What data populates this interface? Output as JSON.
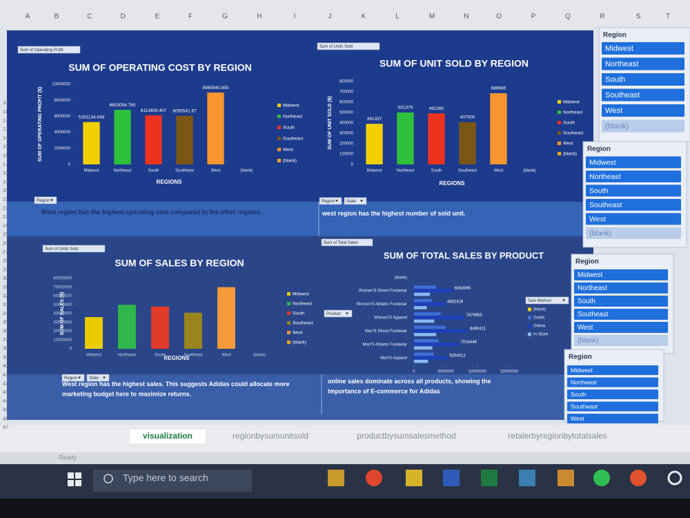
{
  "columns": [
    "A",
    "B",
    "C",
    "D",
    "E",
    "F",
    "G",
    "H",
    "I",
    "J",
    "K",
    "L",
    "M",
    "N",
    "O",
    "P",
    "Q",
    "R",
    "S",
    "T"
  ],
  "rows": [
    10,
    11,
    12,
    13,
    14,
    15,
    16,
    17,
    18,
    19,
    20,
    21,
    22,
    23,
    24,
    25,
    26,
    27,
    28,
    29,
    30,
    31,
    32,
    33,
    34,
    35,
    36,
    37,
    38,
    39,
    40,
    41,
    42,
    43,
    44,
    45,
    46,
    47
  ],
  "chart_data": [
    {
      "type": "bar",
      "title": "SUM OF OPERATING COST BY REGION",
      "field_button": "Sum of Operating Profit",
      "y_label": "SUM OF OPERATING PROFIT ($)",
      "x_label": "REGIONS",
      "categories": [
        "Midwest",
        "Northeast",
        "South",
        "Southeast",
        "West",
        "(blank)"
      ],
      "values": [
        5281134.648,
        6803054.765,
        6113600.407,
        6055541.67,
        8960940.655,
        null
      ],
      "colors": [
        "#f2d000",
        "#2fc13c",
        "#ec3320",
        "#7b5716",
        "#f7962e",
        "#f5a623"
      ],
      "data_labels": true,
      "ylim": [
        0,
        10000000
      ],
      "yticks": [
        0,
        2000000,
        4000000,
        6000000,
        8000000,
        10000000
      ],
      "grid": false,
      "legend": "right",
      "filters": [
        "Region"
      ]
    },
    {
      "type": "bar",
      "title": "SUM OF UNIT SOLD BY REGION",
      "field_button": "Sum of Units Sold",
      "y_label": "SUM OF UNIT SOLD ($)",
      "x_label": "REGIONS",
      "categories": [
        "Midwest",
        "Northeast",
        "South",
        "Southeast",
        "West",
        "(blank)"
      ],
      "values": [
        391337,
        501379,
        492260,
        407000,
        686685,
        null
      ],
      "colors": [
        "#f2d000",
        "#2fc13c",
        "#ec3320",
        "#7b5716",
        "#f7962e",
        "#f5a623"
      ],
      "data_labels": true,
      "ylim": [
        0,
        800000
      ],
      "yticks": [
        0,
        100000,
        200000,
        300000,
        400000,
        500000,
        600000,
        700000,
        800000
      ],
      "grid": false,
      "legend": "right",
      "filters": [
        "Region",
        "State"
      ]
    },
    {
      "type": "bar",
      "title": "SUM OF SALES BY REGION",
      "field_button": "Sum of Units Sold",
      "y_label": "SUM OF SALES ($)",
      "x_label": "REGIONS",
      "categories": [
        "Midwest",
        "Northeast",
        "South",
        "Southeast",
        "West",
        "(blank)"
      ],
      "values": [
        36000000,
        50000000,
        48000000,
        41000000,
        70000000,
        null
      ],
      "colors": [
        "#e8cc00",
        "#30b64a",
        "#e03a2a",
        "#9a8420",
        "#f59a3a",
        "#f5a623"
      ],
      "data_labels": false,
      "ylim": [
        0,
        80000000
      ],
      "yticks": [
        0,
        10000000,
        20000000,
        30000000,
        40000000,
        50000000,
        60000000,
        70000000,
        80000000
      ],
      "grid": false,
      "legend": "right",
      "filters": [
        "Region",
        "State"
      ]
    },
    {
      "type": "barh",
      "title": "SUM OF TOTAL SALES BY PRODUCT",
      "field_button": "Sum of Total Sales",
      "row_button": "Product",
      "legend_button": "Sale Method",
      "categories": [
        "(blank)",
        "Women'S Street Footwear",
        "Women'S Athletic Footwear",
        "Women'S Apparel",
        "Men'S Street Footwear",
        "Men'S Athletic Footwear",
        "Men'S Apparel"
      ],
      "series": [
        {
          "name": "(blank)",
          "color": "#f2d000",
          "values": [
            null,
            null,
            null,
            null,
            null,
            null,
            null
          ]
        },
        {
          "name": "Outlet",
          "color": "#3f6fd8",
          "values": [
            null,
            3500000,
            2800000,
            4200000,
            5000000,
            3900000,
            3100000
          ],
          "data_labels": false
        },
        {
          "name": "Online",
          "color": "#1c3fbf",
          "values": [
            null,
            6063965,
            4882429,
            7879955,
            8480411,
            7016446,
            5254012
          ],
          "data_labels": true
        },
        {
          "name": "In-Store",
          "color": "#8ab8f0",
          "values": [
            null,
            2500000,
            2000000,
            3200000,
            3500000,
            2900000,
            2200000
          ],
          "data_labels": false
        }
      ],
      "xlim": [
        0,
        15000000
      ],
      "xticks": [
        0,
        5000000,
        10000000,
        15000000
      ],
      "grid": false,
      "legend": "right"
    }
  ],
  "insights": [
    "West region has the highest operating cost compared to the other regions.",
    "west region has the highest number of sold unit.",
    "West region has the highest sales. This suggests Adidas could allocate more marketing budget here to maximize returns.",
    "online sales dominate across all products, showing the importance of E-commerce for Adidas"
  ],
  "slicers": [
    {
      "title": "Region",
      "items": [
        "Midwest",
        "Northeast",
        "South",
        "Southeast",
        "West",
        "(blank)"
      ]
    },
    {
      "title": "Region",
      "items": [
        "Midwest",
        "Northeast",
        "South",
        "Southeast",
        "West",
        "(blank)"
      ]
    },
    {
      "title": "Region",
      "items": [
        "Midwest",
        "Northeast",
        "South",
        "Southeast",
        "West",
        "(blank)"
      ]
    },
    {
      "title": "Region",
      "items": [
        "Midwest",
        "Northeast",
        "South",
        "Southeast",
        "West"
      ]
    }
  ],
  "sheet_tabs": [
    "visualization",
    "regionbysumunitsold",
    "productbysumsalesmethod",
    "retalerbyregionbytotalsales"
  ],
  "status": "Ready",
  "taskbar": {
    "search": "Type here to search"
  }
}
